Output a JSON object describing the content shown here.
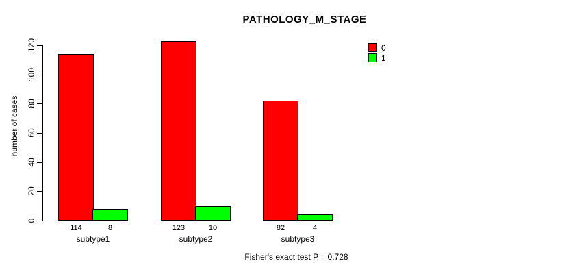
{
  "chart_data": {
    "type": "bar",
    "title": "PATHOLOGY_M_STAGE",
    "ylabel": "number of cases",
    "xlabel": "",
    "categories": [
      "subtype1",
      "subtype2",
      "subtype3"
    ],
    "series": [
      {
        "name": "0",
        "color": "#ff0000",
        "values": [
          114,
          123,
          82
        ]
      },
      {
        "name": "1",
        "color": "#00ff00",
        "values": [
          8,
          10,
          4
        ]
      }
    ],
    "bar_value_labels": [
      [
        114,
        123,
        82
      ],
      [
        8,
        10,
        4
      ]
    ],
    "yticks": [
      0,
      20,
      40,
      60,
      80,
      100,
      120
    ],
    "ylim": [
      0,
      120
    ],
    "grid": false,
    "legend_position": "top-right",
    "annotation": "Fisher's exact test P = 0.728"
  },
  "colors": {
    "series0": "#ff0000",
    "series1": "#00ff00",
    "axis": "#000000",
    "background": "#ffffff"
  }
}
